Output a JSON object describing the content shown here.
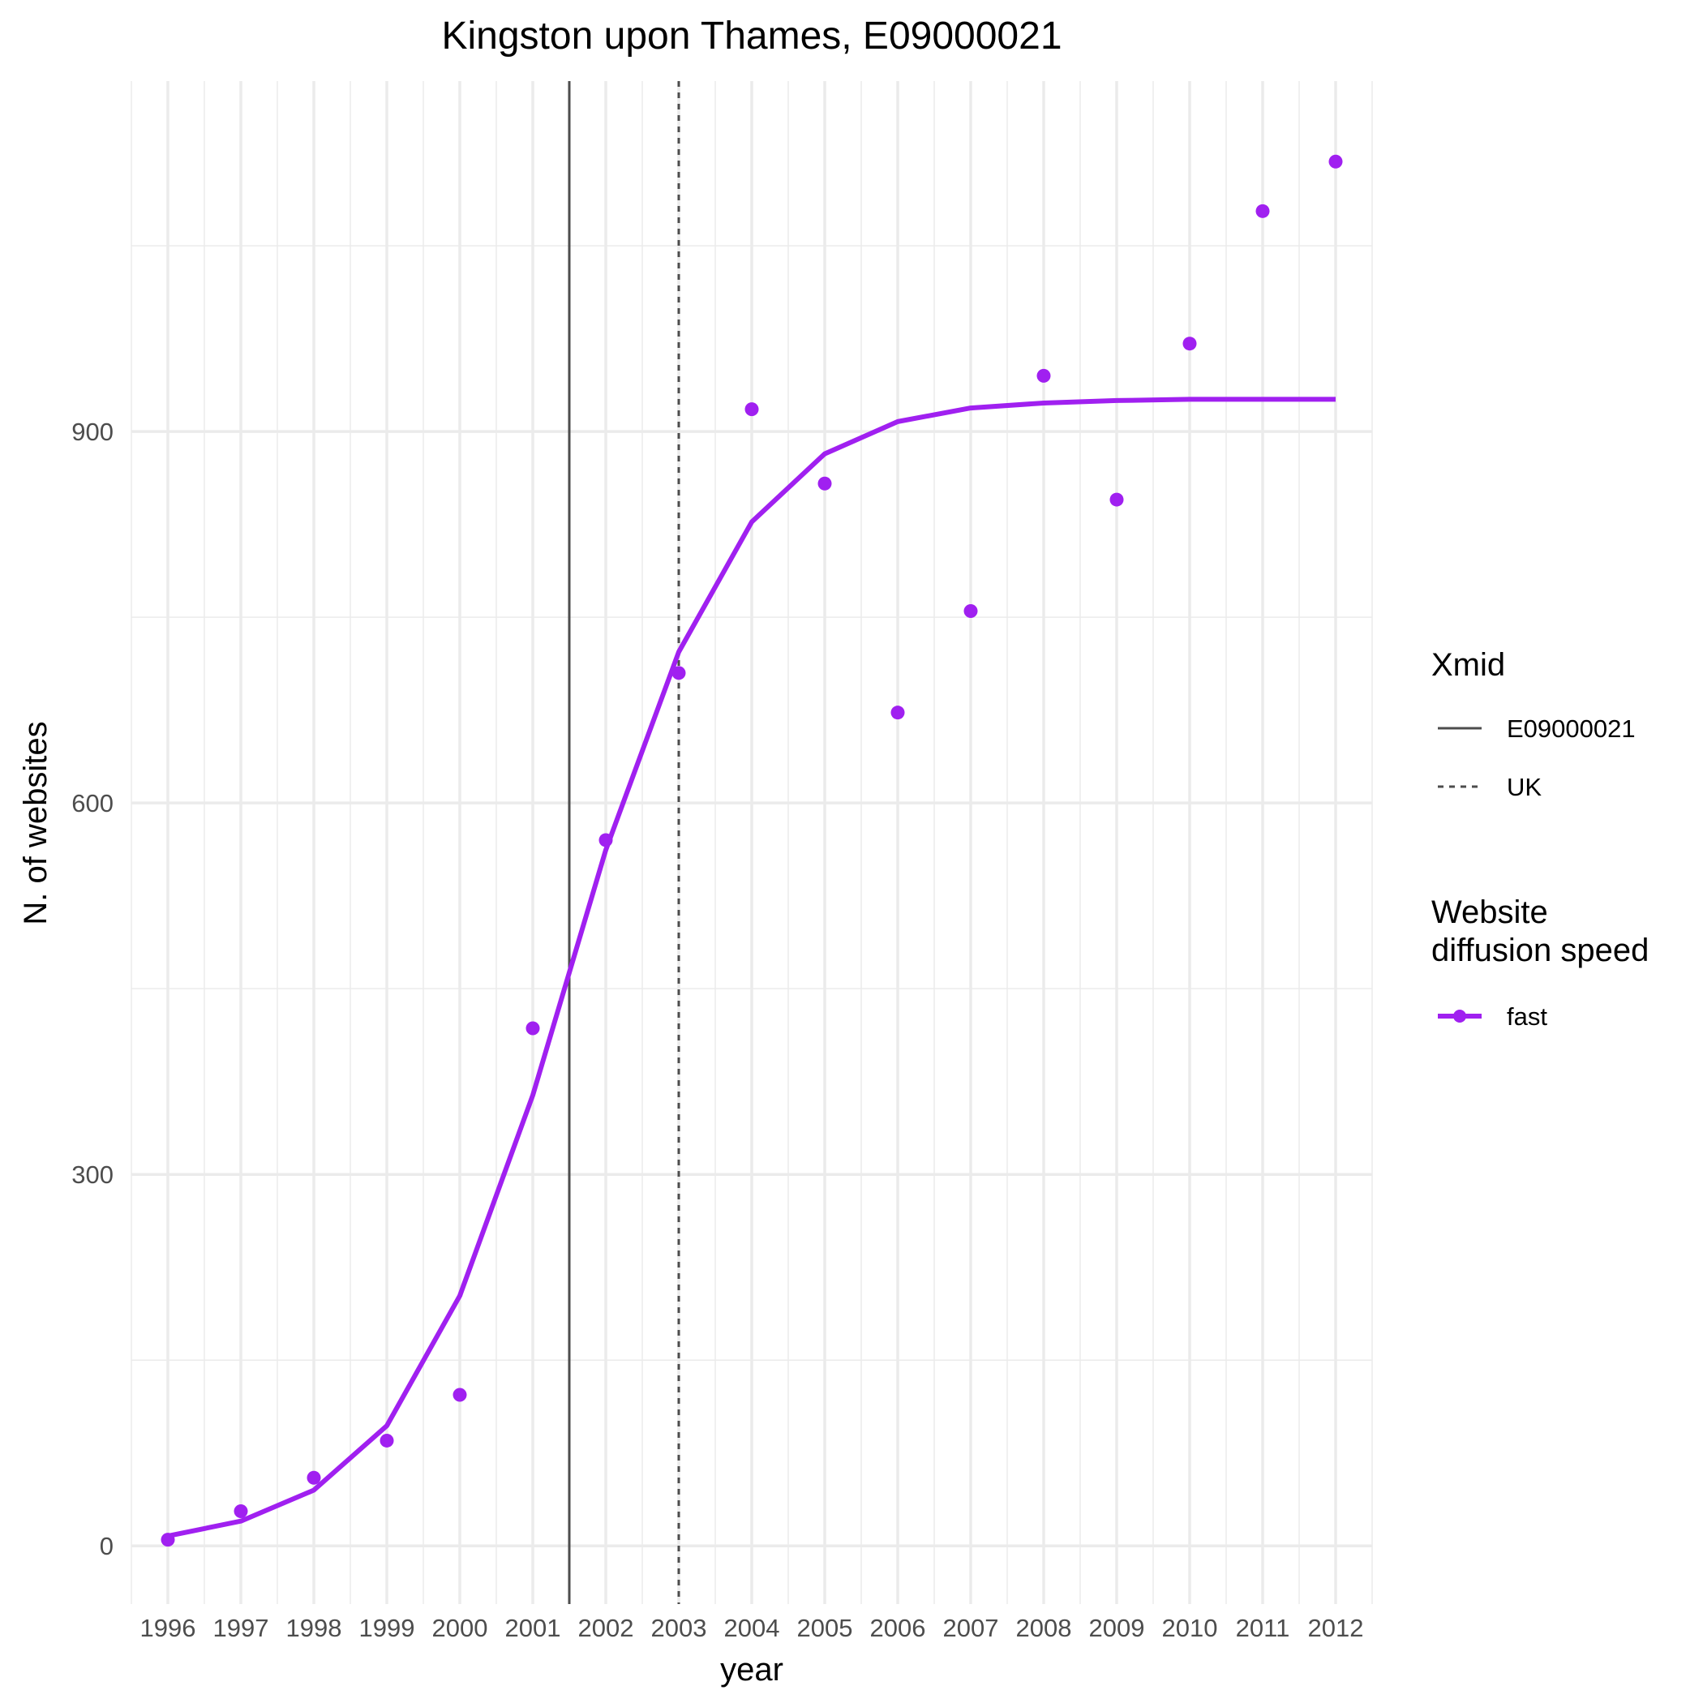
{
  "chart_data": {
    "type": "line",
    "title": "Kingston upon Thames, E09000021",
    "xlabel": "year",
    "ylabel": "N. of websites",
    "x": [
      1996,
      1997,
      1998,
      1999,
      2000,
      2001,
      2002,
      2003,
      2004,
      2005,
      2006,
      2007,
      2008,
      2009,
      2010,
      2011,
      2012
    ],
    "x_tick_labels": [
      "1996",
      "1997",
      "1998",
      "1999",
      "2000",
      "2001",
      "2002",
      "2003",
      "2004",
      "2005",
      "2006",
      "2007",
      "2008",
      "2009",
      "2010",
      "2011",
      "2012"
    ],
    "y_ticks": [
      0,
      300,
      600,
      900
    ],
    "y_tick_labels": [
      "0",
      "300",
      "600",
      "900"
    ],
    "xlim": [
      1995.5,
      2012.5
    ],
    "ylim": [
      -47,
      1183
    ],
    "grid": true,
    "series": [
      {
        "name": "fast",
        "color": "#a020f0",
        "points": [
          5,
          28,
          55,
          85,
          122,
          418,
          570,
          705,
          918,
          858,
          673,
          755,
          945,
          845,
          971,
          1078,
          1118
        ],
        "fitted": [
          8,
          20,
          45,
          97,
          202,
          364,
          562,
          722,
          827,
          882,
          908,
          919,
          923,
          925,
          926,
          926,
          926
        ]
      }
    ],
    "vlines": [
      {
        "name": "E09000021",
        "x": 2001.5,
        "linetype": "solid",
        "color": "#4d4d4d"
      },
      {
        "name": "UK",
        "x": 2003,
        "linetype": "dashed",
        "color": "#4d4d4d"
      }
    ],
    "legend": {
      "placement": "right",
      "xmid_title": "Xmid",
      "xmid_items": [
        "E09000021",
        "UK"
      ],
      "speed_title_line1": "Website",
      "speed_title_line2": "diffusion speed",
      "speed_items": [
        "fast"
      ]
    }
  }
}
